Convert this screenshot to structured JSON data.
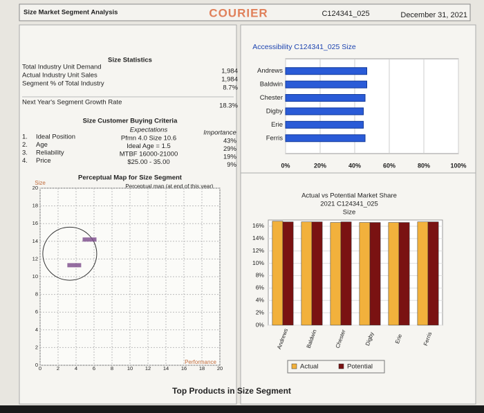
{
  "header": {
    "title": "Size Market Segment Analysis",
    "brand": "COURIER",
    "id": "C124341_025",
    "date": "December 31, 2021"
  },
  "statistics": {
    "title": "Size Statistics",
    "rows": [
      [
        "Total Industry Unit Demand",
        "1,984"
      ],
      [
        "Actual Industry Unit Sales",
        "1,984"
      ],
      [
        "Segment % of Total Industry",
        "8.7%"
      ]
    ],
    "growth": [
      "Next Year's Segment Growth Rate",
      "18.3%"
    ]
  },
  "criteria": {
    "title": "Size Customer Buying Criteria",
    "headers": [
      "Expectations",
      "Importance"
    ],
    "rows": [
      [
        "1.",
        "Ideal Position",
        "Pfmn 4.0 Size 10.6",
        "43%"
      ],
      [
        "2.",
        "Age",
        "Ideal Age = 1.5",
        "29%"
      ],
      [
        "3.",
        "Reliability",
        "MTBF 16000-21000",
        "19%"
      ],
      [
        "4.",
        "Price",
        "$25.00 - 35.00",
        "9%"
      ]
    ]
  },
  "footer": "Top Products in Size Segment",
  "chart_data": [
    {
      "type": "hbar",
      "title": "Accessibility C124341_025 Size",
      "categories": [
        "Andrews",
        "Baldwin",
        "Chester",
        "Digby",
        "Erie",
        "Ferris"
      ],
      "values": [
        47,
        47,
        46,
        45,
        45,
        46
      ],
      "color": "#2a5bd7",
      "xlim": [
        0,
        100
      ],
      "xticks": [
        {
          "value": 0,
          "label": "0%"
        },
        {
          "value": 20,
          "label": "20%"
        },
        {
          "value": 40,
          "label": "40%"
        },
        {
          "value": 60,
          "label": "60%"
        },
        {
          "value": 80,
          "label": "80%"
        },
        {
          "value": 100,
          "label": "100%"
        }
      ],
      "grid": true
    },
    {
      "type": "scatter",
      "title": "Perceptual Map for Size Segment",
      "subtitle": "Perceptual map (at end of this year)",
      "xlabel": "Performance",
      "ylabel": "Size",
      "x": [
        5.5,
        3.8
      ],
      "y": [
        14.2,
        11.3
      ],
      "color": "#7a4a8a",
      "circle": {
        "x": 3.3,
        "y": 12.6,
        "r": 3
      },
      "xlim": [
        0,
        20
      ],
      "ylim": [
        0,
        20
      ],
      "xticks": [
        0,
        2,
        4,
        6,
        8,
        10,
        12,
        14,
        16,
        18,
        20
      ],
      "yticks": [
        0,
        2,
        4,
        6,
        8,
        10,
        12,
        14,
        16,
        18,
        20
      ],
      "grid": true
    },
    {
      "type": "bar",
      "title": "Actual vs Potential Market Share",
      "subtitle": "2021 C124341_025",
      "caption": "Size",
      "categories": [
        "Andrews",
        "Baldwin",
        "Chester",
        "Digby",
        "Erie",
        "Ferris"
      ],
      "series": [
        {
          "name": "Actual",
          "color": "#f2b13c",
          "values": [
            16.8,
            16.7,
            16.6,
            16.6,
            16.6,
            16.7
          ]
        },
        {
          "name": "Potential",
          "color": "#7a1212",
          "values": [
            16.7,
            16.7,
            16.7,
            16.6,
            16.6,
            16.7
          ]
        }
      ],
      "ylim": [
        0,
        17
      ],
      "yticks": [
        {
          "value": 0,
          "label": "0%"
        },
        {
          "value": 2,
          "label": "2%"
        },
        {
          "value": 4,
          "label": "4%"
        },
        {
          "value": 6,
          "label": "6%"
        },
        {
          "value": 8,
          "label": "8%"
        },
        {
          "value": 10,
          "label": "10%"
        },
        {
          "value": 12,
          "label": "12%"
        },
        {
          "value": 14,
          "label": "14%"
        },
        {
          "value": 16,
          "label": "16%"
        }
      ],
      "grid": true
    }
  ]
}
